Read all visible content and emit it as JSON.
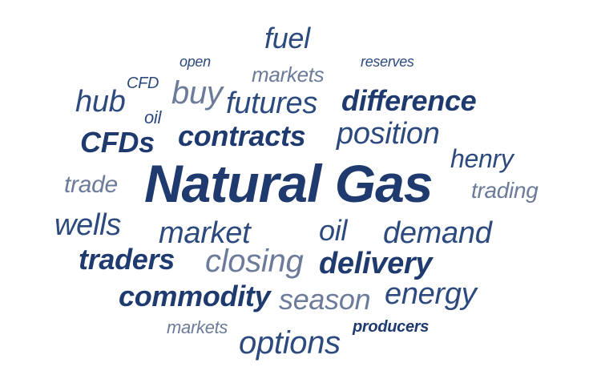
{
  "words": {
    "natural_gas": "Natural Gas",
    "fuel": "fuel",
    "open": "open",
    "markets_top": "markets",
    "reserves": "reserves",
    "cfd": "CFD",
    "hub": "hub",
    "buy": "buy",
    "futures": "futures",
    "difference": "difference",
    "oil_small": "oil",
    "cfds": "CFDs",
    "contracts": "contracts",
    "position": "position",
    "henry": "henry",
    "trade": "trade",
    "trading": "trading",
    "wells": "wells",
    "market": "market",
    "oil_mid": "oil",
    "demand": "demand",
    "traders": "traders",
    "closing": "closing",
    "delivery": "delivery",
    "commodity": "commodity",
    "season": "season",
    "energy": "energy",
    "markets_bottom": "markets",
    "producers": "producers",
    "options": "options"
  },
  "colors": {
    "dark": "#1f3a6e",
    "mid": "#2c4a7e",
    "light": "#6b7b99",
    "background": "#ffffff"
  }
}
